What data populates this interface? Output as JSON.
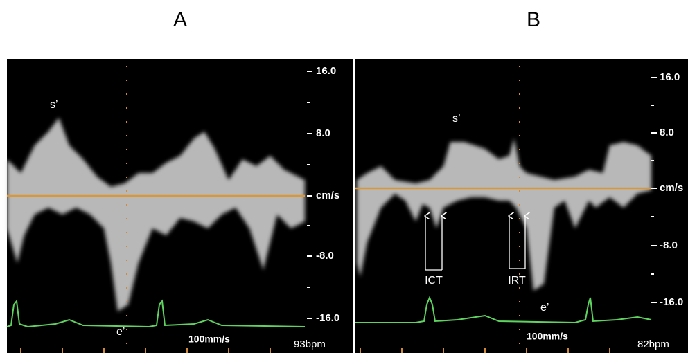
{
  "panels": [
    {
      "label": "A",
      "scale_labels": [
        "16.0",
        "8.0",
        "cm/s",
        "-8.0",
        "-16.0"
      ],
      "peak_labels": [
        "s’",
        "e’"
      ],
      "sweep_speed": "100mm/s",
      "heart_rate": "93bpm"
    },
    {
      "label": "B",
      "scale_labels": [
        "16.0",
        "8.0",
        "cm/s",
        "-8.0",
        "-16.0"
      ],
      "peak_labels": [
        "s’",
        "e’"
      ],
      "interval_labels": [
        "ICT",
        "IRT"
      ],
      "sweep_speed": "100mm/s",
      "heart_rate": "82bpm"
    }
  ]
}
